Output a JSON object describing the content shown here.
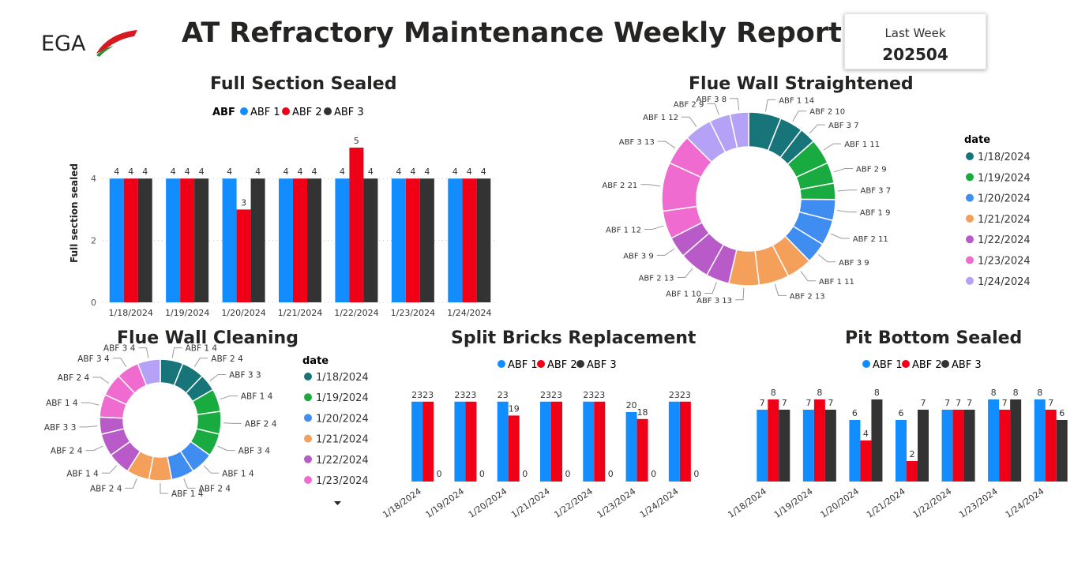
{
  "header": {
    "logo_text": "EGA",
    "title": "AT Refractory Maintenance Weekly Report",
    "period_label": "Last Week",
    "period_value": "202504"
  },
  "colors": {
    "abf1": "#118DFF",
    "abf2": "#F00016",
    "abf3": "#333333",
    "d1": "#17757A",
    "d2": "#1AAB40",
    "d3": "#3F8DF0",
    "d4": "#F4A05B",
    "d5": "#B85BC8",
    "d6": "#F06BD0",
    "d7": "#B5A2F6"
  },
  "legend": {
    "abf_title": "ABF",
    "abf_items": [
      "ABF 1",
      "ABF 2",
      "ABF 3"
    ],
    "date_title": "date",
    "date_items": [
      "1/18/2024",
      "1/19/2024",
      "1/20/2024",
      "1/21/2024",
      "1/22/2024",
      "1/23/2024",
      "1/24/2024"
    ]
  },
  "chart_data": [
    {
      "id": "full_section_sealed",
      "type": "bar",
      "title": "Full Section Sealed",
      "ylabel": "Full section sealed",
      "xlabel": "",
      "ylim": [
        0,
        5
      ],
      "yticks": [
        0,
        2,
        4
      ],
      "categories": [
        "1/18/2024",
        "1/19/2024",
        "1/20/2024",
        "1/21/2024",
        "1/22/2024",
        "1/23/2024",
        "1/24/2024"
      ],
      "series": [
        {
          "name": "ABF 1",
          "values": [
            4,
            4,
            4,
            4,
            4,
            4,
            4
          ]
        },
        {
          "name": "ABF 2",
          "values": [
            4,
            4,
            3,
            4,
            5,
            4,
            4
          ]
        },
        {
          "name": "ABF 3",
          "values": [
            4,
            4,
            4,
            4,
            4,
            4,
            4
          ]
        }
      ]
    },
    {
      "id": "flue_wall_straightened",
      "type": "pie",
      "subtype": "donut",
      "title": "Flue Wall Straightened",
      "slices": [
        {
          "label": "ABF 1",
          "value": 14,
          "date": 0
        },
        {
          "label": "ABF 2",
          "value": 10,
          "date": 0
        },
        {
          "label": "ABF 3",
          "value": 7,
          "date": 0
        },
        {
          "label": "ABF 1",
          "value": 11,
          "date": 1
        },
        {
          "label": "ABF 2",
          "value": 9,
          "date": 1
        },
        {
          "label": "ABF 3",
          "value": 7,
          "date": 1
        },
        {
          "label": "ABF 1",
          "value": 9,
          "date": 2
        },
        {
          "label": "ABF 2",
          "value": 11,
          "date": 2
        },
        {
          "label": "ABF 3",
          "value": 9,
          "date": 2
        },
        {
          "label": "ABF 1",
          "value": 11,
          "date": 3
        },
        {
          "label": "ABF 2",
          "value": 13,
          "date": 3
        },
        {
          "label": "ABF 3",
          "value": 13,
          "date": 3
        },
        {
          "label": "ABF 1",
          "value": 10,
          "date": 4
        },
        {
          "label": "ABF 2",
          "value": 13,
          "date": 4
        },
        {
          "label": "ABF 3",
          "value": 9,
          "date": 4
        },
        {
          "label": "ABF 1",
          "value": 12,
          "date": 5
        },
        {
          "label": "ABF 2",
          "value": 21,
          "date": 5
        },
        {
          "label": "ABF 3",
          "value": 13,
          "date": 5
        },
        {
          "label": "ABF 1",
          "value": 12,
          "date": 6
        },
        {
          "label": "ABF 2",
          "value": 9,
          "date": 6
        },
        {
          "label": "ABF 3",
          "value": 8,
          "date": 6
        }
      ]
    },
    {
      "id": "flue_wall_cleaning",
      "type": "pie",
      "subtype": "donut",
      "title": "Flue Wall Cleaning",
      "slices": [
        {
          "label": "ABF 1",
          "value": 4,
          "date": 0
        },
        {
          "label": "ABF 2",
          "value": 4,
          "date": 0
        },
        {
          "label": "ABF 3",
          "value": 3,
          "date": 0
        },
        {
          "label": "ABF 1",
          "value": 4,
          "date": 1
        },
        {
          "label": "ABF 2",
          "value": 4,
          "date": 1
        },
        {
          "label": "ABF 3",
          "value": 4,
          "date": 1
        },
        {
          "label": "ABF 1",
          "value": 4,
          "date": 2
        },
        {
          "label": "ABF 2",
          "value": 4,
          "date": 2
        },
        {
          "label": "ABF 1",
          "value": 4,
          "date": 3
        },
        {
          "label": "ABF 2",
          "value": 4,
          "date": 3
        },
        {
          "label": "ABF 1",
          "value": 4,
          "date": 4
        },
        {
          "label": "ABF 2",
          "value": 4,
          "date": 4
        },
        {
          "label": "ABF 3",
          "value": 3,
          "date": 4
        },
        {
          "label": "ABF 1",
          "value": 4,
          "date": 5
        },
        {
          "label": "ABF 2",
          "value": 4,
          "date": 5
        },
        {
          "label": "ABF 3",
          "value": 4,
          "date": 5
        },
        {
          "label": "ABF 3",
          "value": 4,
          "date": 6
        }
      ]
    },
    {
      "id": "split_bricks_replacement",
      "type": "bar",
      "title": "Split Bricks Replacement",
      "ylim": [
        0,
        25
      ],
      "categories": [
        "1/18/2024",
        "1/19/2024",
        "1/20/2024",
        "1/21/2024",
        "1/22/2024",
        "1/23/2024",
        "1/24/2024"
      ],
      "series": [
        {
          "name": "ABF 1",
          "values": [
            23,
            23,
            23,
            23,
            23,
            20,
            23
          ]
        },
        {
          "name": "ABF 2",
          "values": [
            23,
            23,
            19,
            23,
            23,
            18,
            23
          ]
        },
        {
          "name": "ABF 3",
          "values": [
            0,
            0,
            0,
            0,
            0,
            0,
            0
          ]
        }
      ]
    },
    {
      "id": "pit_bottom_sealed",
      "type": "bar",
      "title": "Pit Bottom Sealed",
      "ylim": [
        0,
        9
      ],
      "categories": [
        "1/18/2024",
        "1/19/2024",
        "1/20/2024",
        "1/21/2024",
        "1/22/2024",
        "1/23/2024",
        "1/24/2024"
      ],
      "series": [
        {
          "name": "ABF 1",
          "values": [
            7,
            7,
            6,
            6,
            7,
            8,
            8
          ]
        },
        {
          "name": "ABF 2",
          "values": [
            8,
            8,
            4,
            2,
            7,
            7,
            7
          ]
        },
        {
          "name": "ABF 3",
          "values": [
            7,
            7,
            8,
            7,
            7,
            8,
            6
          ]
        }
      ]
    }
  ]
}
